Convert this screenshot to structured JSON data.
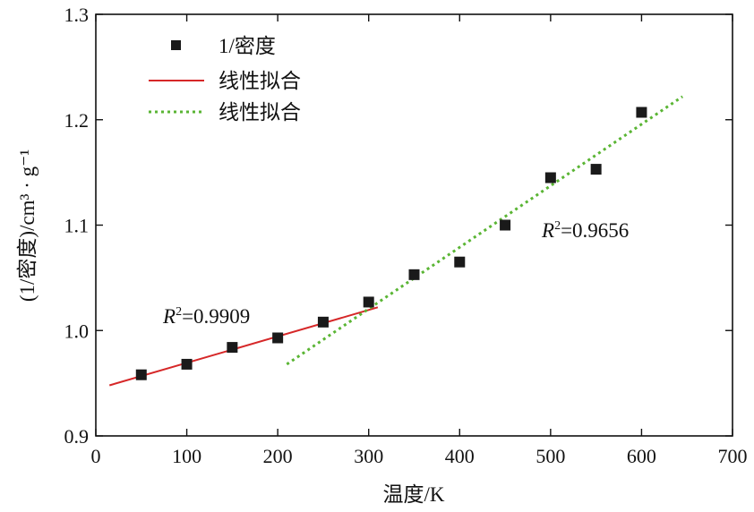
{
  "chart_data": {
    "type": "scatter",
    "xlabel": "温度/K",
    "ylabel": "(1/密度)/cm³ · g⁻¹",
    "xlim": [
      0,
      700
    ],
    "ylim": [
      0.9,
      1.3
    ],
    "xticks": [
      0,
      100,
      200,
      300,
      400,
      500,
      600,
      700
    ],
    "yticks": [
      0.9,
      1.0,
      1.1,
      1.2,
      1.3
    ],
    "xtick_labels": [
      "0",
      "100",
      "200",
      "300",
      "400",
      "500",
      "600",
      "700"
    ],
    "ytick_labels": [
      "0.9",
      "1.0",
      "1.1",
      "1.2",
      "1.3"
    ],
    "grid": false,
    "legend_position": "top-left",
    "series": [
      {
        "name": "1/密度",
        "kind": "scatter",
        "marker": "square",
        "color": "#1a1a1a",
        "x": [
          50,
          100,
          150,
          200,
          250,
          300,
          350,
          400,
          450,
          500,
          550,
          600
        ],
        "y": [
          0.958,
          0.968,
          0.984,
          0.993,
          1.008,
          1.027,
          1.053,
          1.065,
          1.1,
          1.145,
          1.153,
          1.207
        ]
      },
      {
        "name": "线性拟合",
        "kind": "line",
        "style": "solid",
        "color": "#d62728",
        "x": [
          15,
          310
        ],
        "y": [
          0.948,
          1.022
        ]
      },
      {
        "name": "线性拟合",
        "kind": "line",
        "style": "dotted",
        "color": "#5ab534",
        "x": [
          210,
          645
        ],
        "y": [
          0.968,
          1.222
        ]
      }
    ],
    "annotations": [
      {
        "prefix": "R",
        "sup": "2",
        "text": "=0.9909",
        "x": 75,
        "y": 1.009
      },
      {
        "prefix": "R",
        "sup": "2",
        "text": "=0.9656",
        "x": 490,
        "y": 1.096
      }
    ]
  }
}
